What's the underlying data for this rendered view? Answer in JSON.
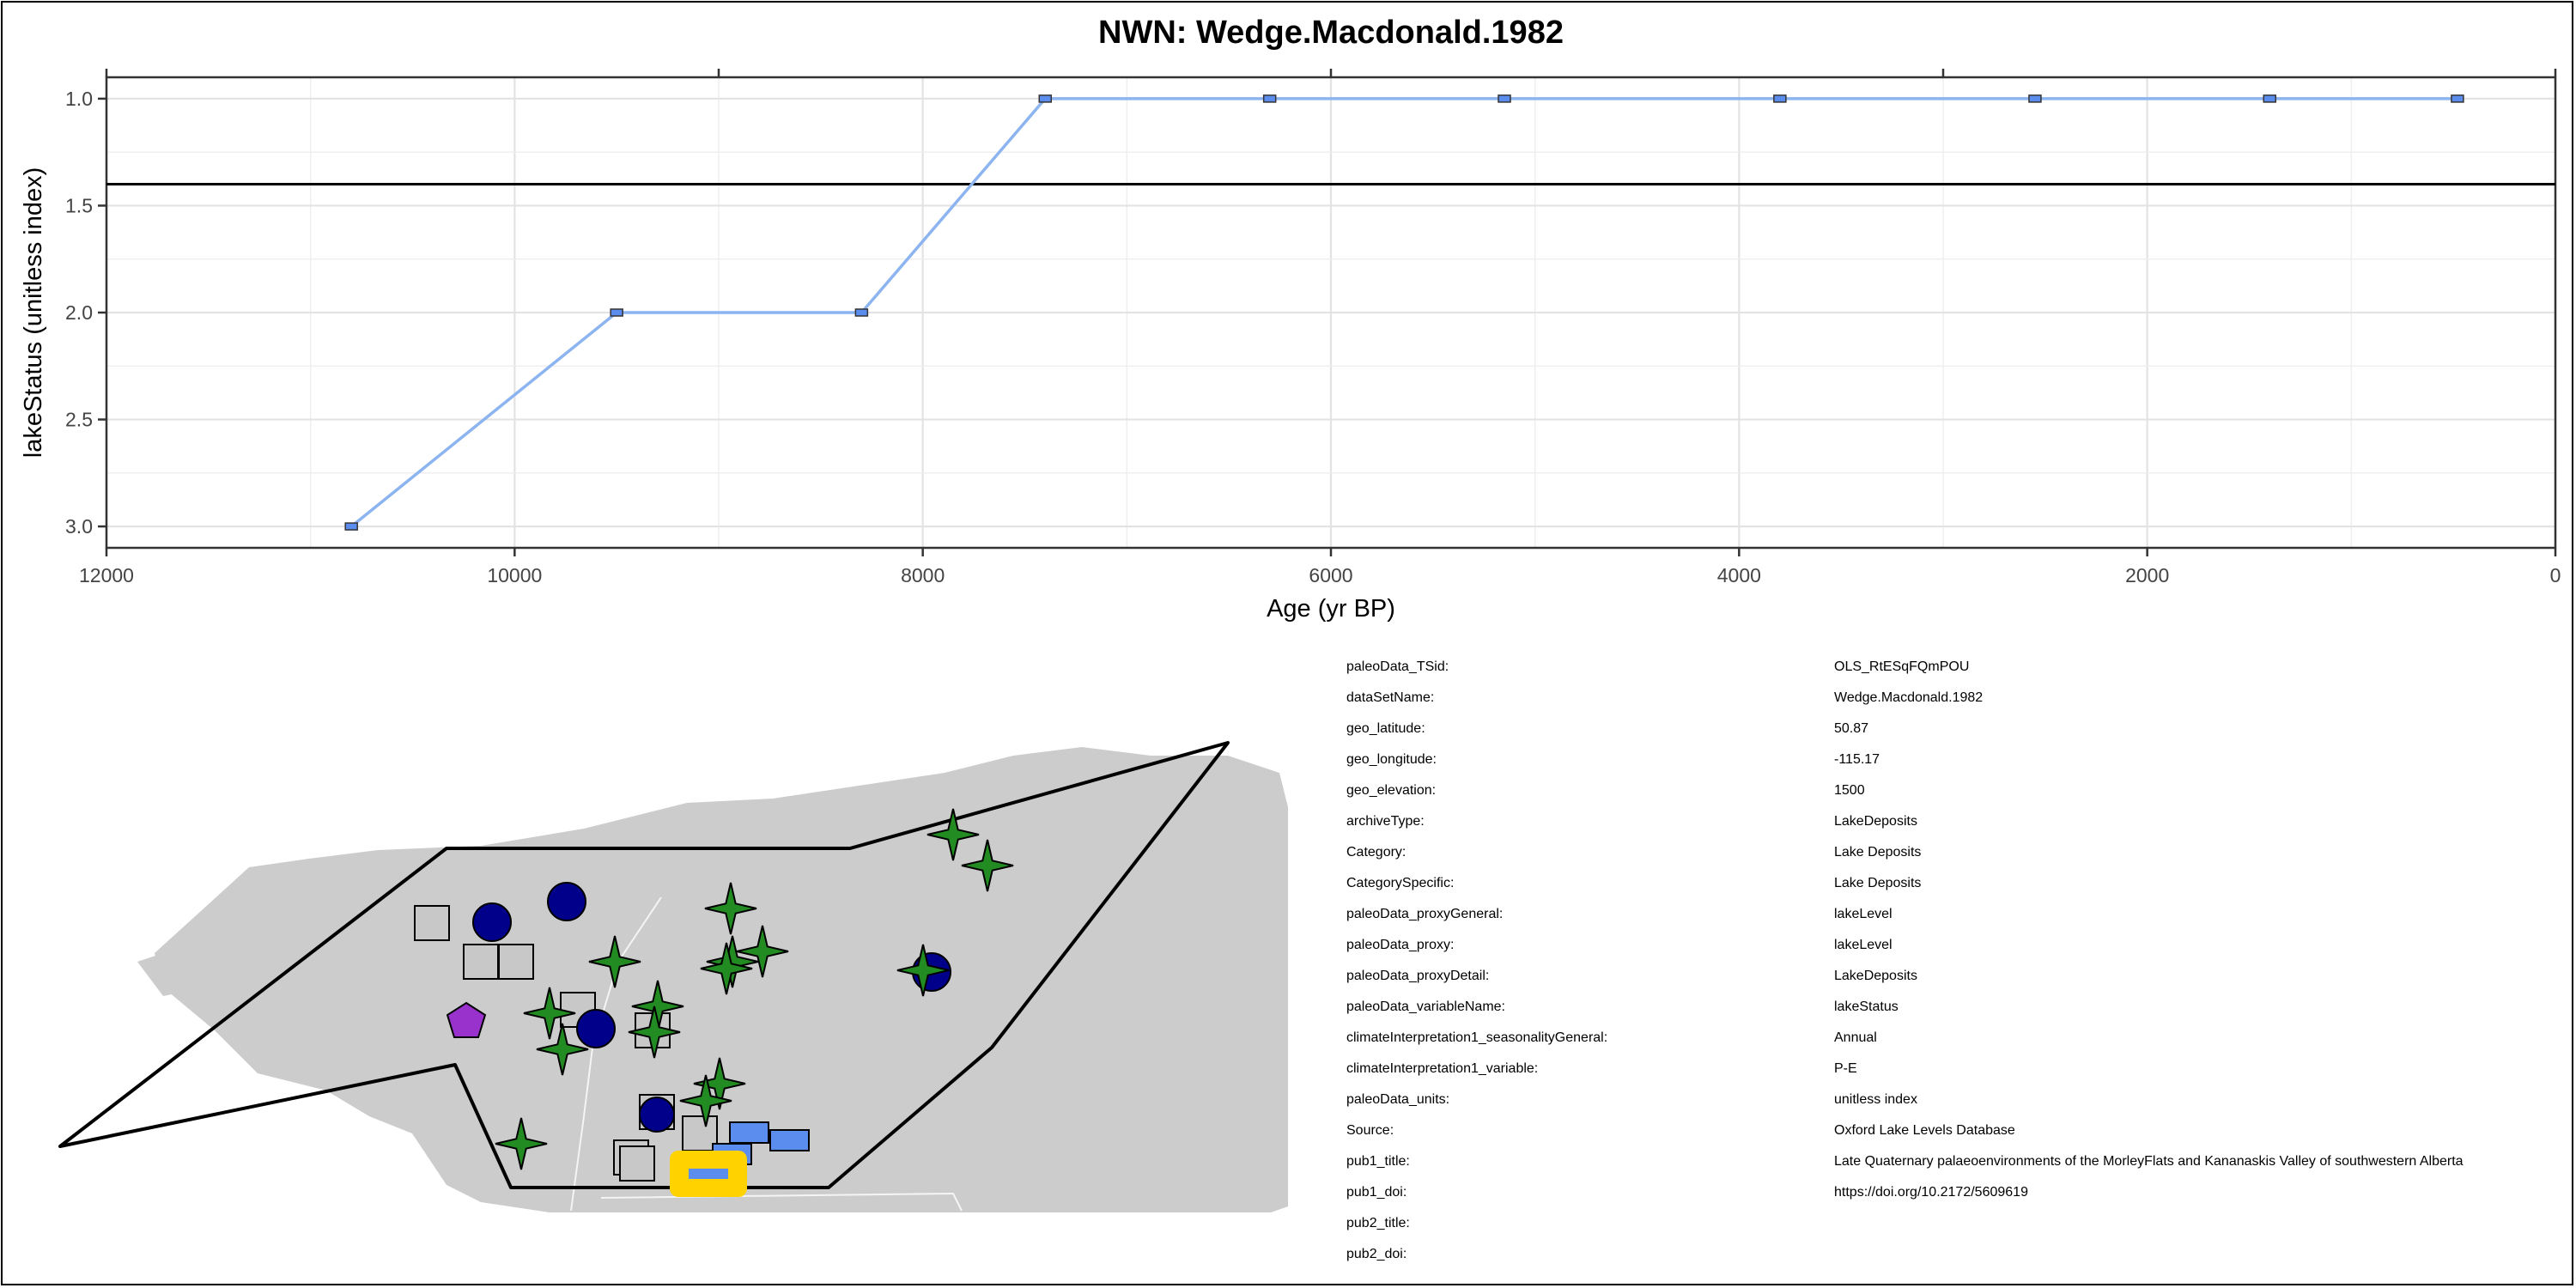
{
  "chart_data": {
    "type": "line",
    "title": "NWN: Wedge.Macdonald.1982",
    "xlabel": "Age (yr BP)",
    "ylabel": "lakeStatus (unitless index)",
    "x_reversed": true,
    "y_reversed": true,
    "xlim": [
      12000,
      0
    ],
    "ylim": [
      0.9,
      3.1
    ],
    "x_ticks": [
      "12000",
      "10000",
      "8000",
      "6000",
      "4000",
      "2000",
      "0"
    ],
    "y_ticks": [
      "1.0",
      "1.5",
      "2.0",
      "2.5",
      "3.0"
    ],
    "reference_line_y": 1.4,
    "grid": true,
    "series": [
      {
        "color": "#8CB4F0",
        "x": [
          10800,
          9500,
          8300,
          7400,
          6300,
          5150,
          3800,
          2550,
          1400,
          480
        ],
        "y": [
          3.0,
          2.0,
          2.0,
          1.0,
          1.0,
          1.0,
          1.0,
          1.0,
          1.0,
          1.0
        ]
      }
    ]
  },
  "info": [
    {
      "key": "paleoData_TSid:",
      "value": "OLS_RtESqFQmPOU"
    },
    {
      "key": "dataSetName:",
      "value": "Wedge.Macdonald.1982"
    },
    {
      "key": "geo_latitude:",
      "value": "50.87"
    },
    {
      "key": "geo_longitude:",
      "value": "-115.17"
    },
    {
      "key": "geo_elevation:",
      "value": "1500"
    },
    {
      "key": "archiveType:",
      "value": "LakeDeposits"
    },
    {
      "key": "Category:",
      "value": "Lake Deposits"
    },
    {
      "key": "CategorySpecific:",
      "value": "Lake Deposits"
    },
    {
      "key": "paleoData_proxyGeneral:",
      "value": "lakeLevel"
    },
    {
      "key": "paleoData_proxy:",
      "value": "lakeLevel"
    },
    {
      "key": "paleoData_proxyDetail:",
      "value": "LakeDeposits"
    },
    {
      "key": "paleoData_variableName:",
      "value": "lakeStatus"
    },
    {
      "key": "climateInterpretation1_seasonalityGeneral:",
      "value": "Annual"
    },
    {
      "key": "climateInterpretation1_variable:",
      "value": "P-E"
    },
    {
      "key": "paleoData_units:",
      "value": "unitless index"
    },
    {
      "key": "Source:",
      "value": "Oxford Lake Levels Database"
    },
    {
      "key": "pub1_title:",
      "value": "Late Quaternary palaeoenvironments of the MorleyFlats and Kananaskis Valley of southwestern Alberta"
    },
    {
      "key": "pub1_doi:",
      "value": "https://doi.org/10.2172/5609619"
    },
    {
      "key": "pub2_title:",
      "value": ""
    },
    {
      "key": "pub2_doi:",
      "value": ""
    }
  ],
  "map": {
    "land_color": "#CCCCCC",
    "highlight_color": "#FFD200",
    "marker_colors": {
      "lake_deposits_square": "#C8C8C8",
      "circle": "#00008B",
      "star": "#228B22",
      "pentagon": "#9932CC",
      "blue_rect": "#5B8DEF"
    }
  }
}
